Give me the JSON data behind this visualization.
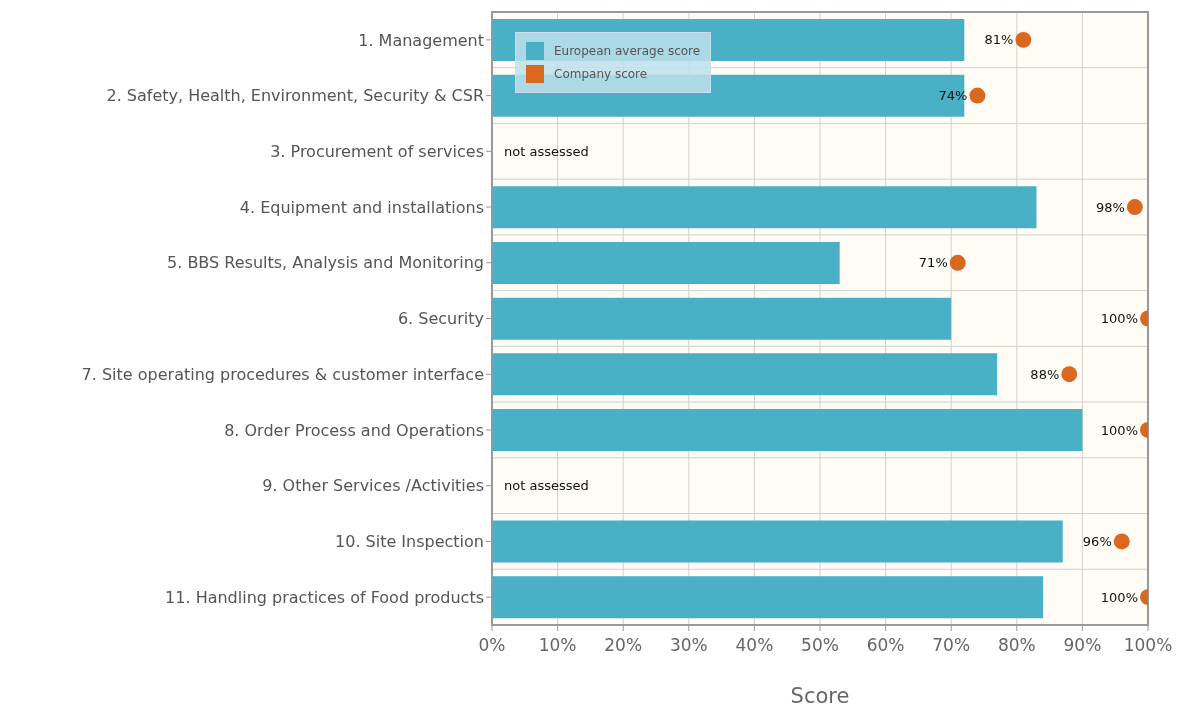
{
  "chart_data": {
    "type": "bar",
    "orientation": "horizontal",
    "xlabel": "Score",
    "categories": [
      "1. Management",
      "2. Safety, Health, Environment, Security & CSR",
      "3. Procurement of services",
      "4. Equipment and installations",
      "5. BBS Results, Analysis and Monitoring",
      "6. Security",
      "7. Site operating procedures & customer interface",
      "8. Order Process and Operations",
      "9. Other Services /Activities",
      "10. Site Inspection",
      "11. Handling practices of Food products"
    ],
    "series": [
      {
        "name": "European average score",
        "type": "bar",
        "color": "#4ab0c6",
        "values": [
          72,
          72,
          null,
          83,
          53,
          70,
          77,
          90,
          null,
          87,
          84
        ]
      },
      {
        "name": "Company score",
        "type": "scatter",
        "color": "#d9691e",
        "values": [
          81,
          74,
          null,
          98,
          71,
          100,
          88,
          100,
          null,
          96,
          100
        ],
        "value_labels": [
          "81%",
          "74%",
          null,
          "98%",
          "71%",
          "100%",
          "88%",
          "100%",
          null,
          "96%",
          "100%"
        ]
      }
    ],
    "xlim": [
      0,
      100
    ],
    "xticks": [
      {
        "value": 0,
        "label": "0%"
      },
      {
        "value": 10,
        "label": "10%"
      },
      {
        "value": 20,
        "label": "20%"
      },
      {
        "value": 30,
        "label": "30%"
      },
      {
        "value": 40,
        "label": "40%"
      },
      {
        "value": 50,
        "label": "50%"
      },
      {
        "value": 60,
        "label": "60%"
      },
      {
        "value": 70,
        "label": "70%"
      },
      {
        "value": 80,
        "label": "80%"
      },
      {
        "value": 90,
        "label": "90%"
      },
      {
        "value": 100,
        "label": "100%"
      }
    ],
    "annotations": [
      "not assessed",
      "not assessed"
    ],
    "grid": true,
    "legend": "top left",
    "marker": "circle"
  }
}
